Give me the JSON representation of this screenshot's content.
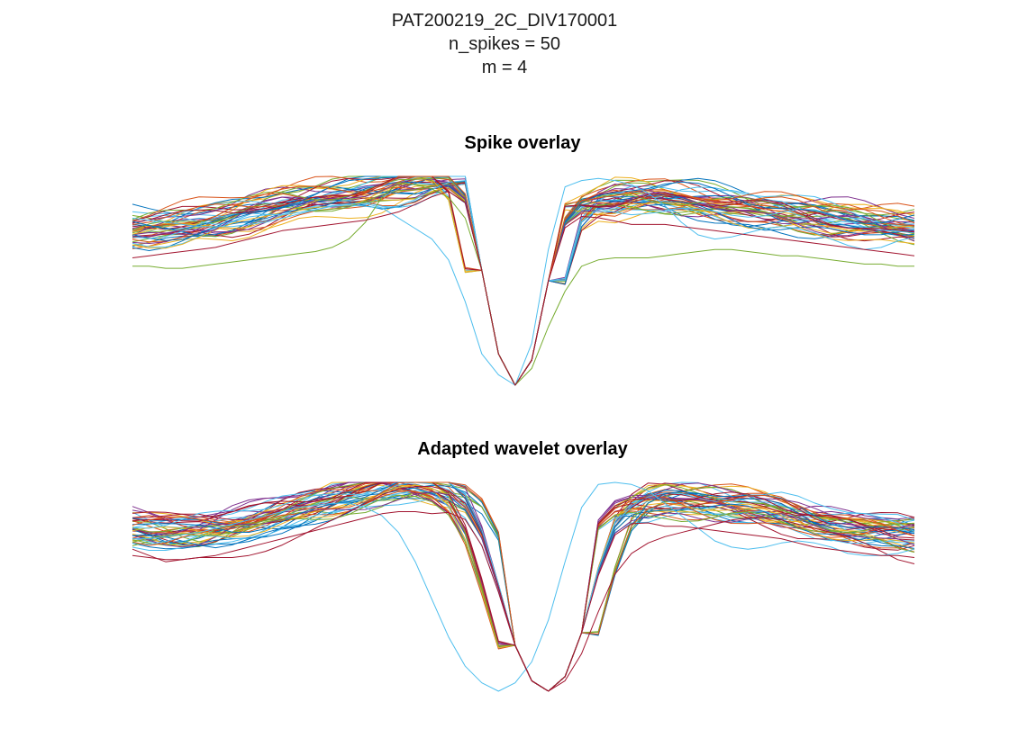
{
  "figure": {
    "suptitle_lines": [
      "PAT200219_2C_DIV170001",
      "n_spikes = 50",
      "m = 4"
    ]
  },
  "colors": [
    "#0072BD",
    "#D95319",
    "#EDB120",
    "#7E2F8E",
    "#77AC30",
    "#4DBEEE",
    "#A2142F"
  ],
  "chart_data": [
    {
      "type": "line",
      "title": "Spike overlay",
      "xlabel": "",
      "ylabel": "",
      "axes_visible": false,
      "grid": false,
      "legend": "none",
      "n_samples": 48,
      "xlim": [
        1,
        48
      ],
      "ylim": [
        -1.0,
        0.0
      ],
      "trough_sample": 24,
      "summary_series": [
        {
          "role": "typical",
          "values": [
            -0.26,
            -0.25,
            -0.24,
            -0.23,
            -0.22,
            -0.21,
            -0.19,
            -0.17,
            -0.15,
            -0.13,
            -0.12,
            -0.11,
            -0.1,
            -0.09,
            -0.08,
            -0.06,
            -0.04,
            -0.03,
            -0.02,
            -0.02,
            -0.1,
            -0.45,
            -0.85,
            -1.0,
            -0.88,
            -0.5,
            -0.22,
            -0.14,
            -0.12,
            -0.11,
            -0.1,
            -0.1,
            -0.1,
            -0.11,
            -0.12,
            -0.13,
            -0.14,
            -0.15,
            -0.16,
            -0.17,
            -0.18,
            -0.19,
            -0.2,
            -0.21,
            -0.22,
            -0.23,
            -0.24,
            -0.25
          ]
        },
        {
          "role": "outlier-green",
          "values": [
            -0.43,
            -0.43,
            -0.44,
            -0.44,
            -0.43,
            -0.42,
            -0.41,
            -0.4,
            -0.39,
            -0.38,
            -0.37,
            -0.36,
            -0.34,
            -0.3,
            -0.22,
            -0.1,
            -0.03,
            -0.04,
            -0.06,
            -0.1,
            -0.2,
            -0.45,
            -0.85,
            -1.0,
            -0.92,
            -0.72,
            -0.55,
            -0.43,
            -0.4,
            -0.39,
            -0.39,
            -0.39,
            -0.38,
            -0.37,
            -0.36,
            -0.35,
            -0.35,
            -0.36,
            -0.37,
            -0.38,
            -0.38,
            -0.39,
            -0.4,
            -0.41,
            -0.42,
            -0.42,
            -0.43,
            -0.43
          ]
        },
        {
          "role": "outlier-cyan",
          "values": [
            -0.2,
            -0.21,
            -0.22,
            -0.23,
            -0.24,
            -0.24,
            -0.24,
            -0.23,
            -0.22,
            -0.2,
            -0.18,
            -0.16,
            -0.14,
            -0.13,
            -0.13,
            -0.15,
            -0.2,
            -0.25,
            -0.3,
            -0.4,
            -0.6,
            -0.85,
            -0.95,
            -1.0,
            -0.8,
            -0.35,
            -0.05,
            -0.02,
            -0.01,
            -0.02,
            -0.04,
            -0.08,
            -0.14,
            -0.22,
            -0.28,
            -0.3,
            -0.29,
            -0.27,
            -0.25,
            -0.24,
            -0.25,
            -0.27,
            -0.3,
            -0.33,
            -0.35,
            -0.34,
            -0.31,
            -0.29
          ]
        }
      ]
    },
    {
      "type": "line",
      "title": "Adapted wavelet overlay",
      "xlabel": "",
      "ylabel": "",
      "axes_visible": false,
      "grid": false,
      "legend": "none",
      "n_samples": 48,
      "xlim": [
        1,
        48
      ],
      "ylim": [
        -1.0,
        0.0
      ],
      "trough_sample": 26,
      "summary_series": [
        {
          "role": "typical",
          "values": [
            -0.22,
            -0.23,
            -0.24,
            -0.24,
            -0.23,
            -0.22,
            -0.2,
            -0.18,
            -0.16,
            -0.14,
            -0.12,
            -0.1,
            -0.08,
            -0.06,
            -0.04,
            -0.02,
            -0.01,
            -0.01,
            -0.02,
            -0.04,
            -0.1,
            -0.25,
            -0.5,
            -0.78,
            -0.95,
            -1.0,
            -0.93,
            -0.72,
            -0.42,
            -0.2,
            -0.12,
            -0.09,
            -0.08,
            -0.08,
            -0.09,
            -0.1,
            -0.11,
            -0.12,
            -0.13,
            -0.14,
            -0.16,
            -0.18,
            -0.19,
            -0.2,
            -0.21,
            -0.22,
            -0.22,
            -0.23
          ]
        },
        {
          "role": "outlier-red",
          "values": [
            -0.32,
            -0.35,
            -0.38,
            -0.37,
            -0.36,
            -0.36,
            -0.36,
            -0.35,
            -0.33,
            -0.3,
            -0.26,
            -0.22,
            -0.18,
            -0.14,
            -0.1,
            -0.06,
            -0.03,
            -0.02,
            -0.02,
            -0.04,
            -0.1,
            -0.25,
            -0.5,
            -0.78,
            -0.95,
            -1.0,
            -0.95,
            -0.82,
            -0.62,
            -0.44,
            -0.34,
            -0.29,
            -0.26,
            -0.24,
            -0.22,
            -0.2,
            -0.18,
            -0.17,
            -0.17,
            -0.18,
            -0.2,
            -0.22,
            -0.24,
            -0.26,
            -0.29,
            -0.33,
            -0.37,
            -0.39
          ]
        },
        {
          "role": "outlier-cyan",
          "values": [
            -0.27,
            -0.27,
            -0.26,
            -0.25,
            -0.24,
            -0.22,
            -0.2,
            -0.18,
            -0.16,
            -0.14,
            -0.12,
            -0.11,
            -0.1,
            -0.1,
            -0.12,
            -0.16,
            -0.24,
            -0.38,
            -0.56,
            -0.74,
            -0.88,
            -0.96,
            -1.0,
            -0.96,
            -0.86,
            -0.66,
            -0.38,
            -0.12,
            -0.01,
            0.0,
            -0.01,
            -0.04,
            -0.1,
            -0.16,
            -0.22,
            -0.28,
            -0.31,
            -0.32,
            -0.31,
            -0.29,
            -0.28,
            -0.29,
            -0.31,
            -0.34,
            -0.35,
            -0.35,
            -0.34,
            -0.32
          ]
        }
      ]
    }
  ]
}
